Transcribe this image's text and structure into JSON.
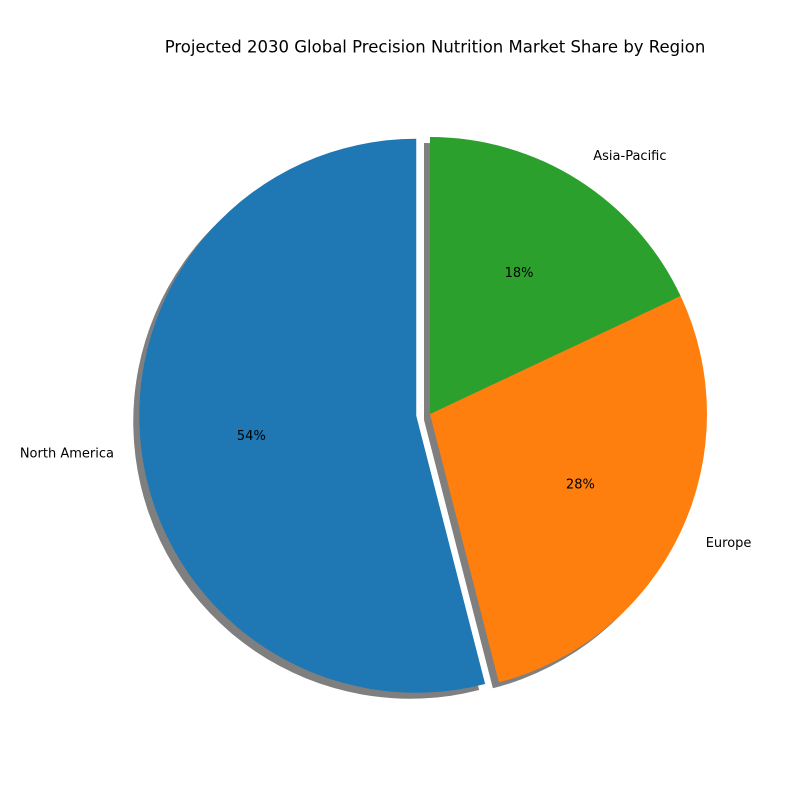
{
  "chart_data": {
    "type": "pie",
    "title": "Projected 2030 Global Precision Nutrition Market Share by Region",
    "categories": [
      "North America",
      "Europe",
      "Asia-Pacific"
    ],
    "values": [
      54,
      28,
      18
    ],
    "value_labels": [
      "54%",
      "28%",
      "18%"
    ],
    "colors": [
      "#1f77b4",
      "#ff7f0e",
      "#2ca02c"
    ],
    "explode": [
      0.05,
      0,
      0
    ],
    "shadow": true
  }
}
